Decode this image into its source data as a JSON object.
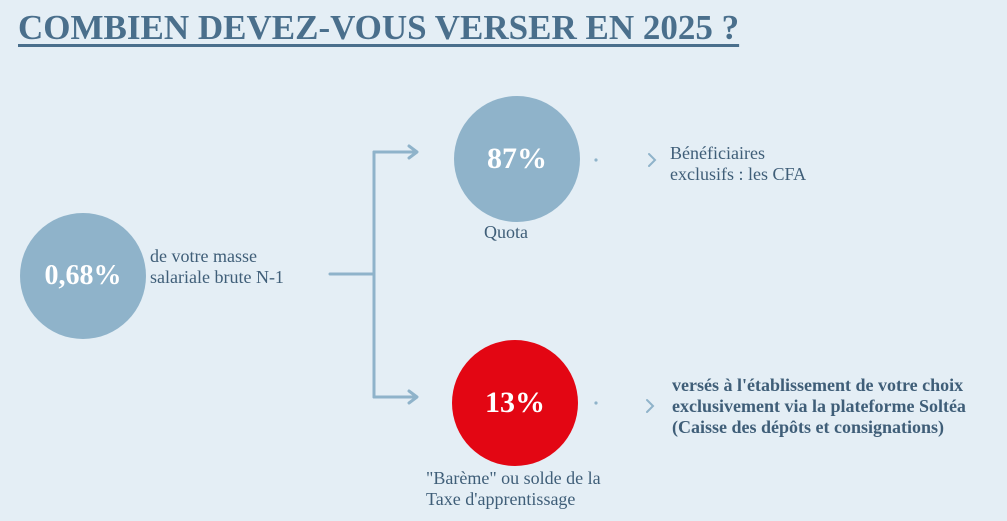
{
  "title": "COMBIEN DEVEZ-VOUS VERSER EN 2025 ?",
  "total": {
    "value": "0,68%",
    "description_line1": "de votre masse",
    "description_line2": "salariale brute N-1"
  },
  "quota": {
    "value": "87%",
    "label": "Quota",
    "beneficiary_line1": "Bénéficiaires",
    "beneficiary_line2": "exclusifs : les CFA"
  },
  "bareme": {
    "value": "13%",
    "label_line1": "\"Barème\" ou solde de la",
    "label_line2": "Taxe d'apprentissage",
    "destination": "versés à l'établissement de votre choix exclusivement via la plateforme Soltéa (Caisse des dépôts et consignations)"
  },
  "colors": {
    "background": "#e4eef5",
    "circle_blue": "#8fb3ca",
    "circle_red": "#e30613",
    "text": "#3f5e78",
    "connector": "#8fb3ca"
  }
}
